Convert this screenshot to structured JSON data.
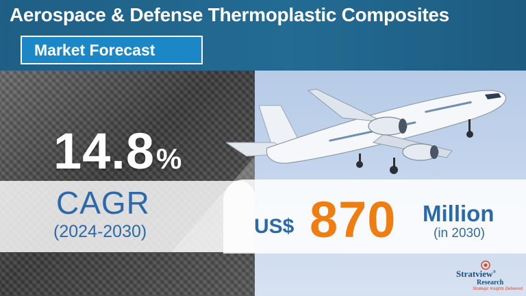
{
  "header": {
    "title": "Aerospace & Defense Thermoplastic Composites",
    "subtitle": "Market Forecast"
  },
  "cagr": {
    "value": "14.8",
    "percent_sign": "%",
    "label": "CAGR",
    "period": "(2024-2030)"
  },
  "market": {
    "currency": "US$",
    "value": "870",
    "unit": "Million",
    "year_note": "(in 2030)"
  },
  "logo": {
    "name": "Stratview",
    "registered": "®",
    "sub": "Research",
    "tagline": "Strategic Insights Delivered"
  },
  "images": {
    "airplane": "airplane-photo",
    "background": "carbon-fiber-texture"
  },
  "colors": {
    "header_bg": "#1f5f86",
    "subtitle_bg": "#1b87c7",
    "accent_blue": "#2b6aa8",
    "accent_orange": "#f07d10"
  }
}
